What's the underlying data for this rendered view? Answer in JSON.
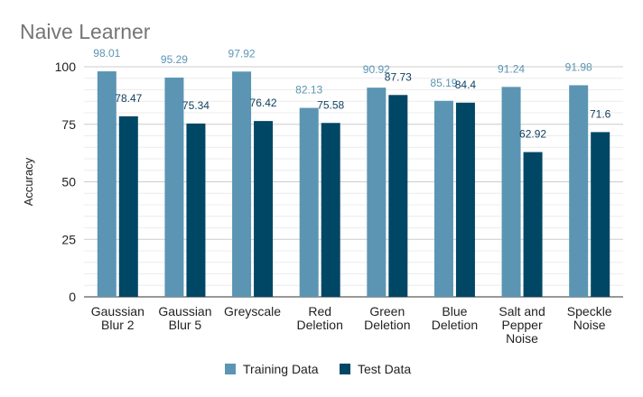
{
  "chart_data": {
    "type": "bar",
    "title": "Naive Learner",
    "xlabel": "",
    "ylabel": "Accuracy",
    "ylim": [
      0,
      100
    ],
    "yticks": [
      0,
      25,
      50,
      75,
      100
    ],
    "grid": true,
    "legend_position": "bottom",
    "categories": [
      [
        "Gaussian",
        "Blur 2"
      ],
      [
        "Gaussian",
        "Blur 5"
      ],
      [
        "Greyscale"
      ],
      [
        "Red",
        "Deletion"
      ],
      [
        "Green",
        "Deletion"
      ],
      [
        "Blue",
        "Deletion"
      ],
      [
        "Salt and",
        "Pepper",
        "Noise"
      ],
      [
        "Speckle",
        "Noise"
      ]
    ],
    "series": [
      {
        "name": "Training Data",
        "color": "#5b95b3",
        "label_color": "#5b95b3",
        "values": [
          98.01,
          95.29,
          97.92,
          82.13,
          90.92,
          85.19,
          91.24,
          91.98
        ],
        "labels": [
          "98.01",
          "95.29",
          "97.92",
          "82.13",
          "90.92",
          "85.19",
          "91.24",
          "91.98"
        ]
      },
      {
        "name": "Test Data",
        "color": "#004766",
        "label_color": "#0d3f5e",
        "values": [
          78.47,
          75.34,
          76.42,
          75.58,
          87.73,
          84.4,
          62.92,
          71.6
        ],
        "labels": [
          "78.47",
          "75.34",
          "76.42",
          "75.58",
          "87.73",
          "84.4",
          "62.92",
          "71.6"
        ]
      }
    ]
  }
}
